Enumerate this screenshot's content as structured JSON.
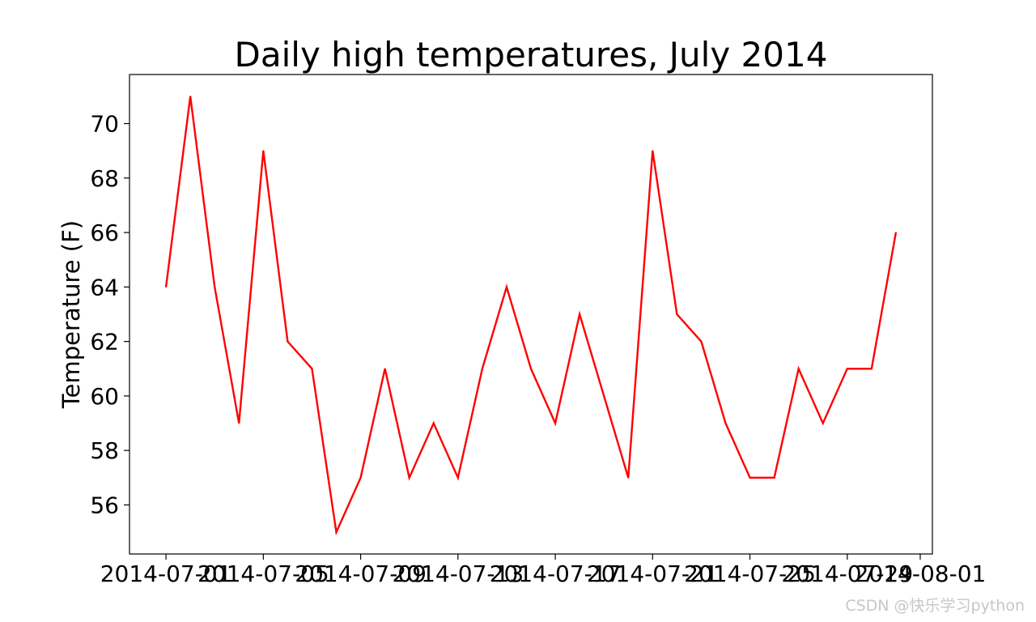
{
  "chart_data": {
    "type": "line",
    "title": "Daily high temperatures, July 2014",
    "xlabel": "",
    "ylabel": "Temperature (F)",
    "x": [
      "2014-07-01",
      "2014-07-02",
      "2014-07-03",
      "2014-07-04",
      "2014-07-05",
      "2014-07-06",
      "2014-07-07",
      "2014-07-08",
      "2014-07-09",
      "2014-07-10",
      "2014-07-11",
      "2014-07-12",
      "2014-07-13",
      "2014-07-14",
      "2014-07-15",
      "2014-07-16",
      "2014-07-17",
      "2014-07-18",
      "2014-07-19",
      "2014-07-20",
      "2014-07-21",
      "2014-07-22",
      "2014-07-23",
      "2014-07-24",
      "2014-07-25",
      "2014-07-26",
      "2014-07-27",
      "2014-07-28",
      "2014-07-29",
      "2014-07-30",
      "2014-07-31"
    ],
    "series": [
      {
        "color": "#ff0000",
        "values": [
          64,
          71,
          64,
          59,
          69,
          62,
          61,
          55,
          57,
          61,
          57,
          59,
          57,
          61,
          64,
          61,
          59,
          63,
          60,
          57,
          69,
          63,
          62,
          59,
          57,
          57,
          61,
          59,
          61,
          61,
          66
        ]
      }
    ],
    "xticks": [
      "2014-07-01",
      "2014-07-05",
      "2014-07-09",
      "2014-07-13",
      "2014-07-17",
      "2014-07-21",
      "2014-07-25",
      "2014-07-29",
      "2014-08-01"
    ],
    "yticks": [
      56,
      58,
      60,
      62,
      64,
      66,
      68,
      70
    ],
    "xlim": [
      "2014-06-29.5",
      "2014-08-01.5"
    ],
    "ylim": [
      54.2,
      71.8
    ],
    "grid": false,
    "legend": "none"
  },
  "watermark": "CSDN @快乐学习python"
}
